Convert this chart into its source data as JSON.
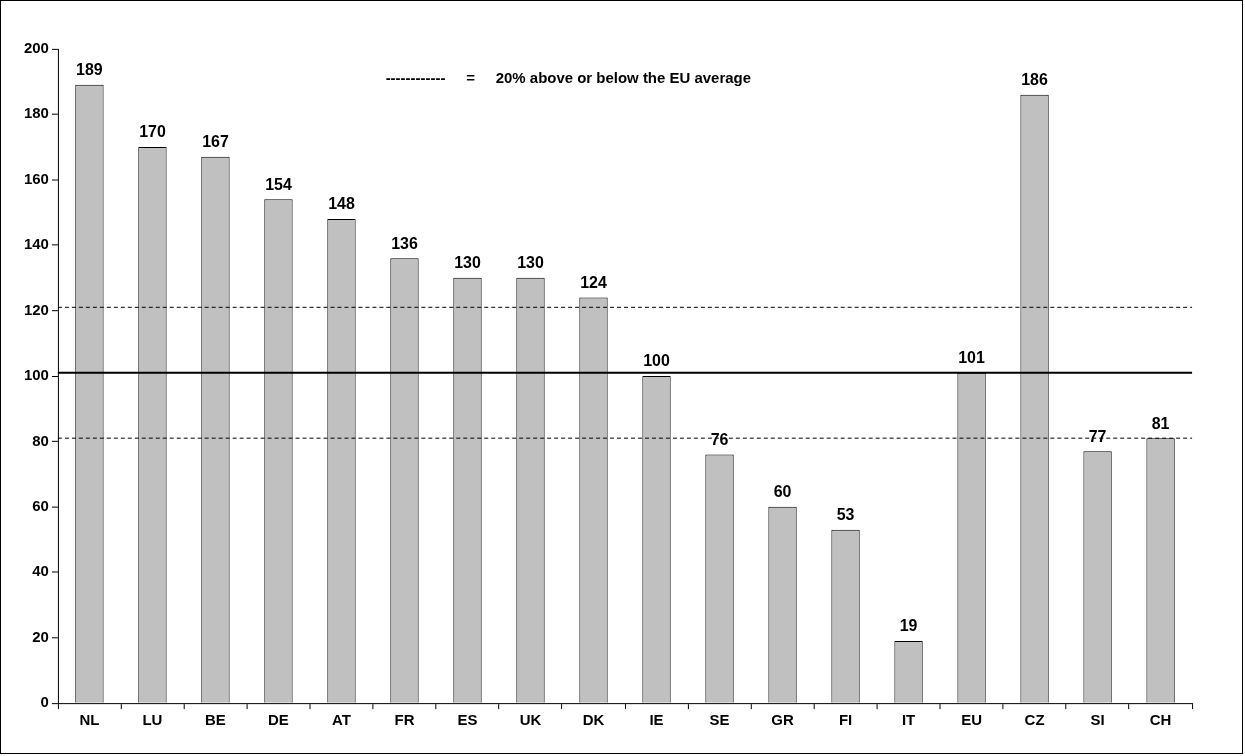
{
  "chart_data": {
    "type": "bar",
    "categories": [
      "NL",
      "LU",
      "BE",
      "DE",
      "AT",
      "FR",
      "ES",
      "UK",
      "DK",
      "IE",
      "SE",
      "GR",
      "FI",
      "IT",
      "EU",
      "CZ",
      "SI",
      "CH"
    ],
    "values": [
      189,
      170,
      167,
      154,
      148,
      136,
      130,
      130,
      124,
      100,
      76,
      60,
      53,
      19,
      101,
      186,
      77,
      81
    ],
    "color": "#c0c0c0",
    "ylim": [
      0,
      200
    ],
    "yticks": [
      0,
      20,
      40,
      60,
      80,
      100,
      120,
      140,
      160,
      180,
      200
    ],
    "grid": false,
    "data_labels": true,
    "ref_lines": [
      {
        "axis": "y",
        "value": 101,
        "color": "#000000",
        "line_style": "solid"
      },
      {
        "axis": "y",
        "value": 121,
        "color": "#000000",
        "line_style": "dashed"
      },
      {
        "axis": "y",
        "value": 81,
        "color": "#000000",
        "line_style": "dashed"
      }
    ],
    "annotations": [
      "------------     =     20% above or below the EU average"
    ]
  }
}
